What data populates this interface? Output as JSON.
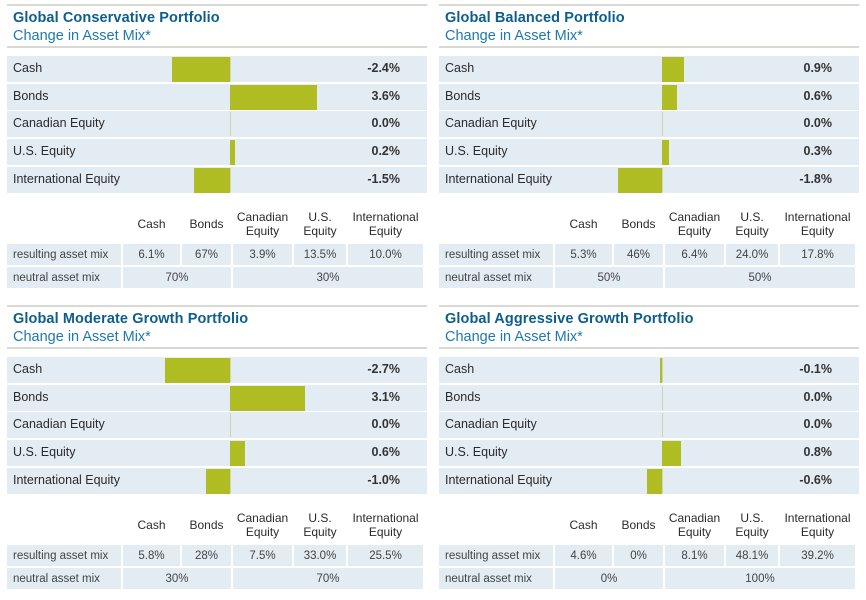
{
  "colors": {
    "title": "#0d5e8e",
    "subtitle": "#1f79b0",
    "bar": "#afbd22",
    "row_bg": "#e3ebf3",
    "rule": "#d9d9d4"
  },
  "subtitle": "Change in Asset Mix*",
  "table_headers": {
    "cash": "Cash",
    "bonds": "Bonds",
    "canadian_line1": "Canadian",
    "canadian_line2": "Equity",
    "us_line1": "U.S.",
    "us_line2": "Equity",
    "intl_line1": "International",
    "intl_line2": "Equity"
  },
  "row_labels": {
    "resulting": "resulting asset mix",
    "neutral": "neutral asset mix"
  },
  "chart_data": [
    {
      "type": "bar",
      "orientation": "horizontal-diverging",
      "title": "Global Conservative Portfolio",
      "subtitle": "Change in Asset Mix*",
      "categories": [
        "Cash",
        "Bonds",
        "Canadian Equity",
        "U.S. Equity",
        "International Equity"
      ],
      "values": [
        -2.4,
        3.6,
        0.0,
        0.2,
        -1.5
      ],
      "value_labels": [
        "-2.4%",
        "3.6%",
        "0.0%",
        "0.2%",
        "-1.5%"
      ],
      "resulting_asset_mix": [
        "6.1%",
        "67%",
        "3.9%",
        "13.5%",
        "10.0%"
      ],
      "neutral_asset_mix": [
        "70%",
        "30%"
      ]
    },
    {
      "type": "bar",
      "orientation": "horizontal-diverging",
      "title": "Global Balanced Portfolio",
      "subtitle": "Change in Asset Mix*",
      "categories": [
        "Cash",
        "Bonds",
        "Canadian Equity",
        "U.S. Equity",
        "International Equity"
      ],
      "values": [
        0.9,
        0.6,
        0.0,
        0.3,
        -1.8
      ],
      "value_labels": [
        "0.9%",
        "0.6%",
        "0.0%",
        "0.3%",
        "-1.8%"
      ],
      "resulting_asset_mix": [
        "5.3%",
        "46%",
        "6.4%",
        "24.0%",
        "17.8%"
      ],
      "neutral_asset_mix": [
        "50%",
        "50%"
      ]
    },
    {
      "type": "bar",
      "orientation": "horizontal-diverging",
      "title": "Global Moderate Growth Portfolio",
      "subtitle": "Change in Asset Mix*",
      "categories": [
        "Cash",
        "Bonds",
        "Canadian Equity",
        "U.S. Equity",
        "International Equity"
      ],
      "values": [
        -2.7,
        3.1,
        0.0,
        0.6,
        -1.0
      ],
      "value_labels": [
        "-2.7%",
        "3.1%",
        "0.0%",
        "0.6%",
        "-1.0%"
      ],
      "resulting_asset_mix": [
        "5.8%",
        "28%",
        "7.5%",
        "33.0%",
        "25.5%"
      ],
      "neutral_asset_mix": [
        "30%",
        "70%"
      ]
    },
    {
      "type": "bar",
      "orientation": "horizontal-diverging",
      "title": "Global Aggressive Growth Portfolio",
      "subtitle": "Change in Asset Mix*",
      "categories": [
        "Cash",
        "Bonds",
        "Canadian Equity",
        "U.S. Equity",
        "International Equity"
      ],
      "values": [
        -0.1,
        0.0,
        0.0,
        0.8,
        -0.6
      ],
      "value_labels": [
        "-0.1%",
        "0.0%",
        "0.0%",
        "0.8%",
        "-0.6%"
      ],
      "resulting_asset_mix": [
        "4.6%",
        "0%",
        "8.1%",
        "48.1%",
        "39.2%"
      ],
      "neutral_asset_mix": [
        "0%",
        "100%"
      ]
    }
  ]
}
